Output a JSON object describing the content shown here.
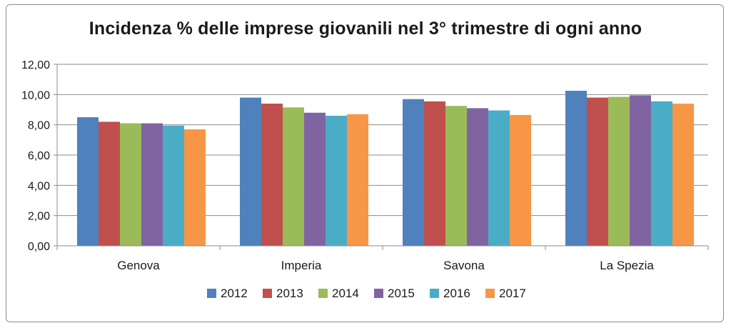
{
  "chart_data": {
    "type": "bar",
    "title": "Incidenza % delle imprese giovanili nel 3° trimestre di ogni anno",
    "xlabel": "",
    "ylabel": "",
    "ylim": [
      0,
      12
    ],
    "yticks": [
      "0,00",
      "2,00",
      "4,00",
      "6,00",
      "8,00",
      "10,00",
      "12,00"
    ],
    "grid": true,
    "legend": "bottom",
    "categories": [
      "Genova",
      "Imperia",
      "Savona",
      "La Spezia"
    ],
    "series": [
      {
        "name": "2012",
        "color": "#4f81bd",
        "values": [
          8.5,
          9.8,
          9.7,
          10.25
        ]
      },
      {
        "name": "2013",
        "color": "#c0504d",
        "values": [
          8.2,
          9.4,
          9.55,
          9.8
        ]
      },
      {
        "name": "2014",
        "color": "#9bbb59",
        "values": [
          8.1,
          9.15,
          9.25,
          9.85
        ]
      },
      {
        "name": "2015",
        "color": "#8064a2",
        "values": [
          8.1,
          8.8,
          9.1,
          9.95
        ]
      },
      {
        "name": "2016",
        "color": "#4bacc6",
        "values": [
          7.95,
          8.6,
          8.95,
          9.55
        ]
      },
      {
        "name": "2017",
        "color": "#f79646",
        "values": [
          7.7,
          8.7,
          8.65,
          9.4
        ]
      }
    ]
  }
}
